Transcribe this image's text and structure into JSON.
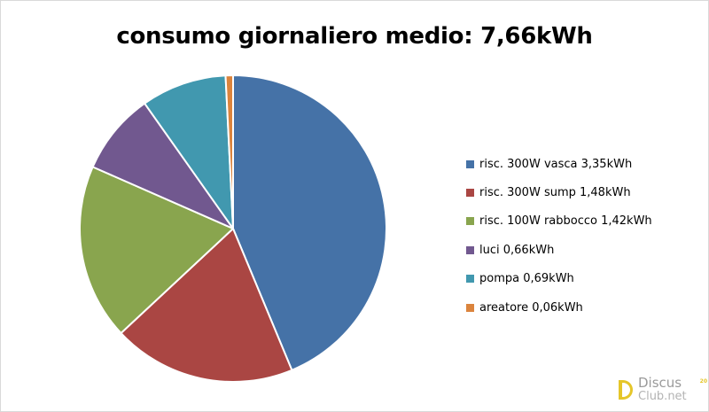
{
  "chart_data": {
    "type": "pie",
    "title": "consumo giornaliero medio: 7,66kWh",
    "legend_position": "right",
    "slices": [
      {
        "label": "risc. 300W vasca 3,35kWh",
        "value": 3.35,
        "color": "#4572a7"
      },
      {
        "label": "risc. 300W sump 1,48kWh",
        "value": 1.48,
        "color": "#aa4643"
      },
      {
        "label": "risc. 100W rabbocco 1,42kWh",
        "value": 1.42,
        "color": "#89a54e"
      },
      {
        "label": "luci 0,66kWh",
        "value": 0.66,
        "color": "#71588f"
      },
      {
        "label": "pompa 0,69kWh",
        "value": 0.69,
        "color": "#4198af"
      },
      {
        "label": "areatore 0,06kWh",
        "value": 0.06,
        "color": "#db843d"
      }
    ]
  },
  "watermark": {
    "line1": "Discus",
    "line2": "Club.net",
    "badge": "20",
    "icon": "discus-club-logo-icon",
    "color": "#e5c62a"
  }
}
